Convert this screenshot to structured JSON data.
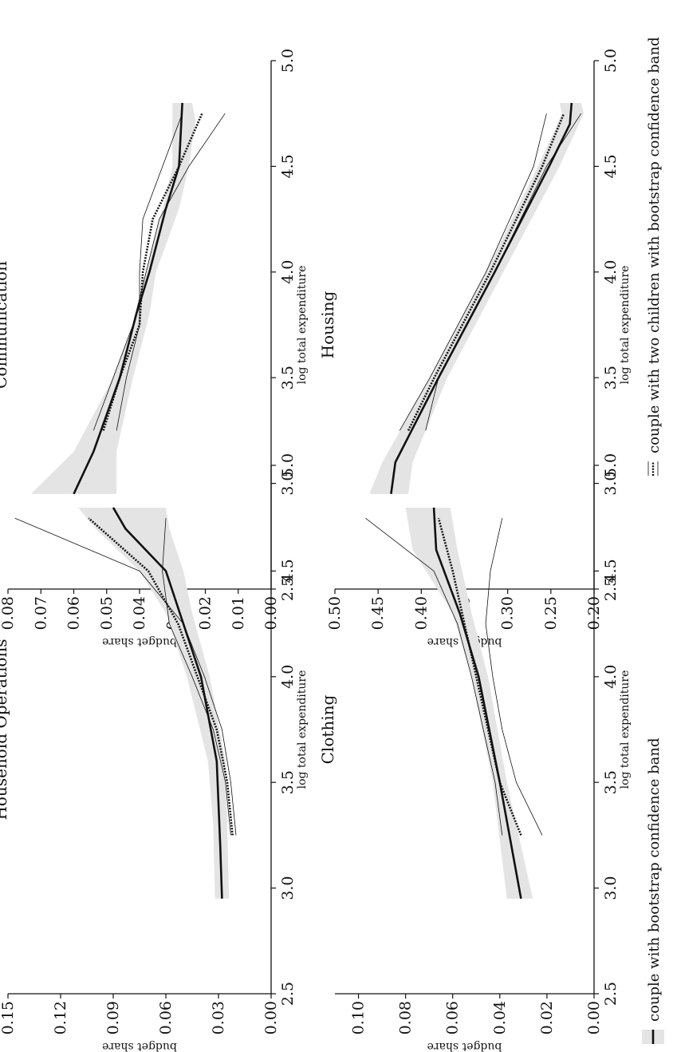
{
  "chart_data": [
    {
      "type": "line",
      "title": "Communication",
      "xlabel": "log total expenditure",
      "ylabel": "budget share",
      "xlim": [
        2.5,
        5.0
      ],
      "ylim": [
        0.0,
        0.08
      ],
      "xticks": [
        "2.5",
        "3.0",
        "3.5",
        "4.0",
        "4.5",
        "5.0"
      ],
      "yticks": [
        "0.00",
        "0.01",
        "0.02",
        "0.03",
        "0.04",
        "0.05",
        "0.06",
        "0.07",
        "0.08"
      ],
      "grid": false,
      "band": {
        "x": [
          2.95,
          3.15,
          3.5,
          3.8,
          4.0,
          4.3,
          4.5,
          4.72,
          4.8
        ],
        "lower": [
          0.047,
          0.047,
          0.042,
          0.037,
          0.035,
          0.028,
          0.025,
          0.023,
          0.024
        ],
        "upper": [
          0.073,
          0.06,
          0.048,
          0.041,
          0.038,
          0.033,
          0.03,
          0.03,
          0.03
        ]
      },
      "series": [
        {
          "style": "solid",
          "x": [
            2.95,
            3.15,
            3.5,
            3.8,
            4.0,
            4.3,
            4.5,
            4.8
          ],
          "values": [
            0.06,
            0.054,
            0.046,
            0.041,
            0.037,
            0.032,
            0.028,
            0.027
          ]
        },
        {
          "style": "dotted",
          "x": [
            3.25,
            3.5,
            3.75,
            4.0,
            4.25,
            4.5,
            4.75
          ],
          "values": [
            0.051,
            0.046,
            0.04,
            0.039,
            0.036,
            0.028,
            0.021
          ]
        },
        {
          "style": "thin",
          "x": [
            3.25,
            3.5,
            3.75,
            4.0,
            4.25,
            4.5,
            4.75
          ],
          "values": [
            0.054,
            0.048,
            0.042,
            0.038,
            0.034,
            0.025,
            0.014
          ]
        },
        {
          "style": "thin",
          "x": [
            3.25,
            3.5,
            3.75,
            4.0,
            4.25,
            4.5,
            4.75
          ],
          "values": [
            0.047,
            0.044,
            0.04,
            0.04,
            0.039,
            0.033,
            0.027
          ]
        }
      ]
    },
    {
      "type": "line",
      "title": "Housing",
      "xlabel": "log total expenditure",
      "ylabel": "budget share",
      "xlim": [
        2.5,
        5.0
      ],
      "ylim": [
        0.2,
        0.5
      ],
      "xticks": [
        "2.5",
        "3.0",
        "3.5",
        "4.0",
        "4.5",
        "5.0"
      ],
      "yticks": [
        "0.20",
        "0.25",
        "0.30",
        "0.35",
        "0.40",
        "0.45",
        "0.50"
      ],
      "grid": false,
      "band": {
        "x": [
          2.95,
          3.1,
          3.5,
          4.0,
          4.5,
          4.75,
          4.8
        ],
        "lower": [
          0.415,
          0.41,
          0.37,
          0.305,
          0.24,
          0.212,
          0.215
        ],
        "upper": [
          0.46,
          0.445,
          0.39,
          0.325,
          0.265,
          0.237,
          0.24
        ]
      },
      "series": [
        {
          "style": "solid",
          "x": [
            2.95,
            3.1,
            3.5,
            4.0,
            4.5,
            4.7,
            4.8
          ],
          "values": [
            0.435,
            0.43,
            0.38,
            0.315,
            0.252,
            0.228,
            0.226
          ]
        },
        {
          "style": "dotted",
          "x": [
            3.25,
            3.5,
            4.0,
            4.5,
            4.75
          ],
          "values": [
            0.415,
            0.385,
            0.32,
            0.26,
            0.235
          ]
        },
        {
          "style": "thin",
          "x": [
            3.25,
            3.5,
            4.0,
            4.5,
            4.75
          ],
          "values": [
            0.425,
            0.39,
            0.325,
            0.27,
            0.255
          ]
        },
        {
          "style": "thin",
          "x": [
            3.25,
            3.5,
            4.0,
            4.5,
            4.75
          ],
          "values": [
            0.395,
            0.38,
            0.315,
            0.255,
            0.215
          ]
        }
      ]
    },
    {
      "type": "line",
      "title": "Household Operations",
      "xlabel": "log total expenditure",
      "ylabel": "budget share",
      "xlim": [
        2.5,
        5.0
      ],
      "ylim": [
        0.0,
        0.15
      ],
      "xticks": [
        "2.5",
        "3.0",
        "3.5",
        "4.0",
        "4.5",
        "5.0"
      ],
      "yticks": [
        "0.00",
        "0.03",
        "0.06",
        "0.09",
        "0.12",
        "0.15"
      ],
      "grid": false,
      "band": {
        "x": [
          2.95,
          3.3,
          3.6,
          4.0,
          4.3,
          4.5,
          4.7,
          4.8
        ],
        "lower": [
          0.024,
          0.025,
          0.026,
          0.035,
          0.045,
          0.05,
          0.058,
          0.06
        ],
        "upper": [
          0.032,
          0.033,
          0.036,
          0.048,
          0.06,
          0.075,
          0.1,
          0.11
        ]
      },
      "series": [
        {
          "style": "solid",
          "x": [
            2.95,
            3.2,
            3.6,
            4.0,
            4.3,
            4.5,
            4.7,
            4.8
          ],
          "values": [
            0.028,
            0.029,
            0.031,
            0.04,
            0.052,
            0.06,
            0.083,
            0.09
          ]
        },
        {
          "style": "dotted",
          "x": [
            3.25,
            3.5,
            3.75,
            4.0,
            4.25,
            4.5,
            4.75
          ],
          "values": [
            0.022,
            0.025,
            0.031,
            0.042,
            0.053,
            0.07,
            0.104
          ]
        },
        {
          "style": "thin",
          "x": [
            3.25,
            3.5,
            3.75,
            4.0,
            4.25,
            4.5,
            4.75
          ],
          "values": [
            0.02,
            0.023,
            0.028,
            0.038,
            0.05,
            0.075,
            0.146
          ]
        },
        {
          "style": "thin",
          "x": [
            3.25,
            3.5,
            3.75,
            4.0,
            4.25,
            4.5,
            4.75
          ],
          "values": [
            0.023,
            0.026,
            0.033,
            0.045,
            0.058,
            0.062,
            0.06
          ]
        }
      ]
    },
    {
      "type": "line",
      "title": "Clothing",
      "xlabel": "log total expenditure",
      "ylabel": "budget share",
      "xlim": [
        2.5,
        5.0
      ],
      "ylim": [
        0.0,
        0.11
      ],
      "xticks": [
        "2.5",
        "3.0",
        "3.5",
        "4.0",
        "4.5",
        "5.0"
      ],
      "yticks": [
        "0.00",
        "0.02",
        "0.04",
        "0.06",
        "0.08",
        "0.10"
      ],
      "grid": false,
      "band": {
        "x": [
          2.95,
          3.5,
          4.0,
          4.3,
          4.6,
          4.8
        ],
        "lower": [
          0.026,
          0.037,
          0.045,
          0.052,
          0.058,
          0.061
        ],
        "upper": [
          0.037,
          0.043,
          0.052,
          0.06,
          0.077,
          0.08
        ]
      },
      "series": [
        {
          "style": "solid",
          "x": [
            2.95,
            3.5,
            4.0,
            4.3,
            4.6,
            4.8
          ],
          "values": [
            0.031,
            0.04,
            0.049,
            0.057,
            0.067,
            0.068
          ]
        },
        {
          "style": "dotted",
          "x": [
            3.25,
            3.5,
            3.75,
            4.0,
            4.25,
            4.5,
            4.75
          ],
          "values": [
            0.031,
            0.04,
            0.045,
            0.05,
            0.055,
            0.06,
            0.066
          ]
        },
        {
          "style": "thin",
          "x": [
            3.25,
            3.5,
            3.75,
            4.0,
            4.25,
            4.5,
            4.75
          ],
          "values": [
            0.022,
            0.033,
            0.039,
            0.043,
            0.046,
            0.044,
            0.039
          ]
        },
        {
          "style": "thin",
          "x": [
            3.25,
            3.5,
            3.75,
            4.0,
            4.25,
            4.5,
            4.75
          ],
          "values": [
            0.039,
            0.042,
            0.047,
            0.052,
            0.058,
            0.068,
            0.097
          ]
        }
      ]
    }
  ],
  "legend": [
    {
      "label": "couple with bootstrap confidence band",
      "marker": "band-solid"
    },
    {
      "label": "couple with two children with bootstrap confidence band",
      "marker": "dotted-thin"
    }
  ],
  "colors": {
    "band": "#e4e4e4",
    "line": "#111111"
  }
}
